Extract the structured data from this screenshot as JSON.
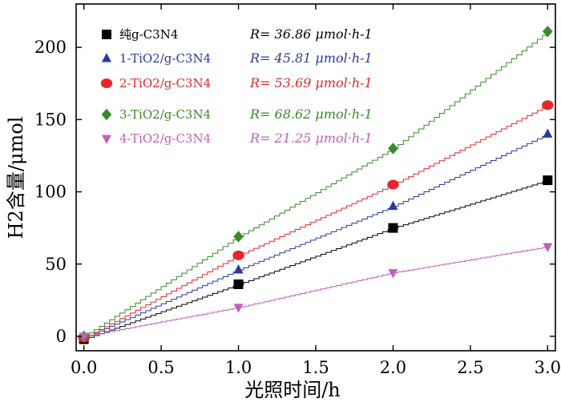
{
  "chart_data": {
    "type": "scatter",
    "title": "",
    "xlabel": "光照时间/h",
    "ylabel": "H2含量/μmol",
    "xlim": [
      -0.05,
      3.05
    ],
    "ylim": [
      -10,
      230
    ],
    "xticks": [
      "0.0",
      "0.5",
      "1.0",
      "1.5",
      "2.0",
      "2.5",
      "3.0"
    ],
    "yticks": [
      "0",
      "50",
      "100",
      "150",
      "200"
    ],
    "legend_position": "top-left",
    "series": [
      {
        "name": "纯g-C3N4",
        "rate": "R= 36.86 μmol·h-1",
        "color": "#000000",
        "marker": "square",
        "x": [
          0,
          1,
          2,
          3
        ],
        "values": [
          -2,
          36,
          75,
          108
        ]
      },
      {
        "name": "1-TiO2/g-C3N4",
        "rate": "R= 45.81 μmol·h-1",
        "color": "#2b3aa0",
        "marker": "triangle-up",
        "x": [
          0,
          1,
          2,
          3
        ],
        "values": [
          -1,
          46,
          90,
          140
        ]
      },
      {
        "name": "2-TiO2/g-C3N4",
        "rate": "R= 53.69 μmol·h-1",
        "color": "#e8262a",
        "marker": "circle",
        "x": [
          0,
          1,
          2,
          3
        ],
        "values": [
          -1,
          56,
          105,
          160
        ]
      },
      {
        "name": "3-TiO2/g-C3N4",
        "rate": "R= 68.62 μmol·h-1",
        "color": "#3a8a2a",
        "marker": "diamond",
        "x": [
          0,
          1,
          2,
          3
        ],
        "values": [
          0,
          69,
          130,
          211
        ]
      },
      {
        "name": "4-TiO2/g-C3N4",
        "rate": "R= 21.25 μmol·h-1",
        "color": "#c060b8",
        "marker": "triangle-down",
        "x": [
          0,
          1,
          2,
          3
        ],
        "values": [
          0,
          20,
          44,
          62
        ]
      }
    ]
  }
}
